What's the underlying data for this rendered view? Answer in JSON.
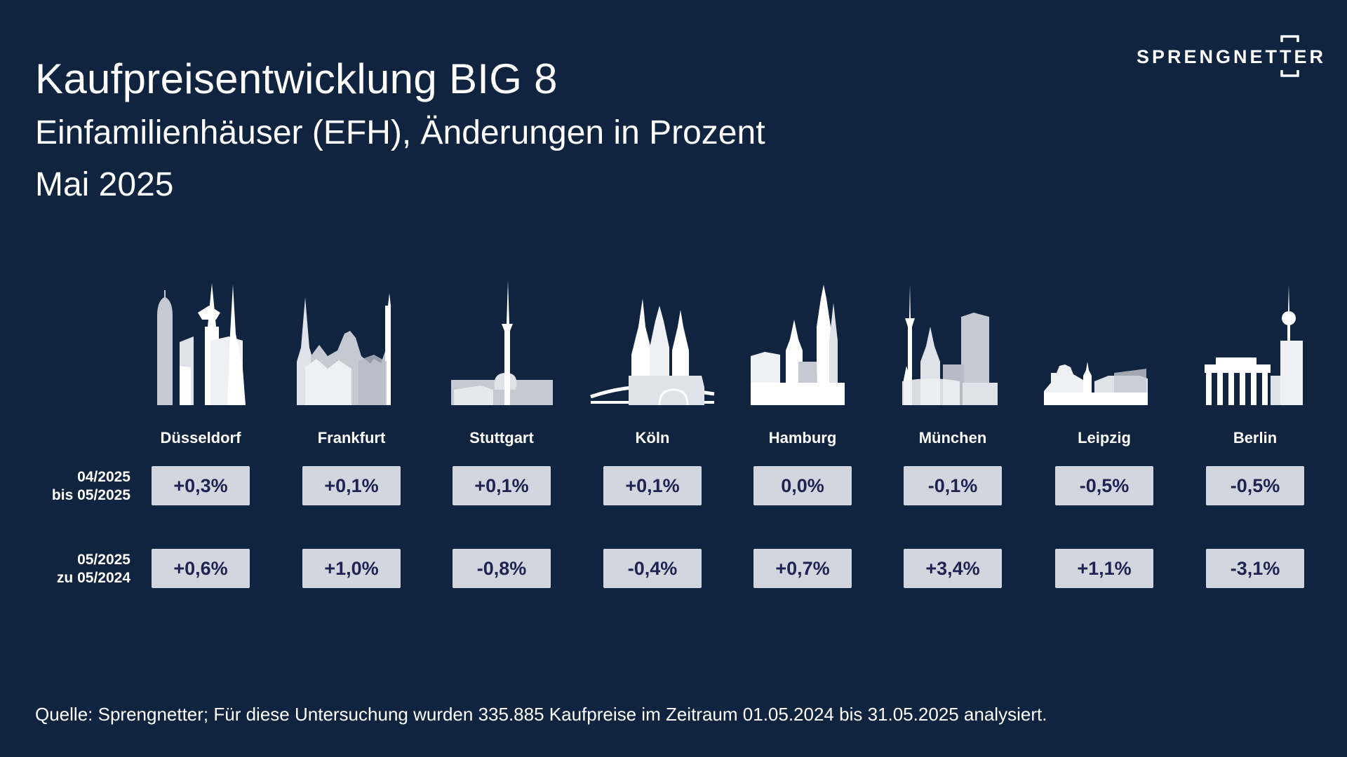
{
  "header": {
    "title": "Kaufpreisentwicklung BIG 8",
    "subtitle": "Einfamilienhäuser (EFH), Änderungen in Prozent",
    "period": "Mai 2025"
  },
  "logo": {
    "text": "SPRENGNETTER"
  },
  "rows": {
    "monthly": {
      "line1": "04/2025",
      "line2": "bis 05/2025"
    },
    "yearly": {
      "line1": "05/2025",
      "line2": "zu 05/2024"
    }
  },
  "chart_data": {
    "type": "table",
    "columns": [
      "Düsseldorf",
      "Frankfurt",
      "Stuttgart",
      "Köln",
      "Hamburg",
      "München",
      "Leipzig",
      "Berlin"
    ],
    "rows": [
      {
        "label": "04/2025 bis 05/2025",
        "display": [
          "+0,3%",
          "+0,1%",
          "+0,1%",
          "+0,1%",
          "0,0%",
          "-0,1%",
          "-0,5%",
          "-0,5%"
        ],
        "values": [
          0.3,
          0.1,
          0.1,
          0.1,
          0.0,
          -0.1,
          -0.5,
          -0.5
        ]
      },
      {
        "label": "05/2025 zu 05/2024",
        "display": [
          "+0,6%",
          "+1,0%",
          "-0,8%",
          "-0,4%",
          "+0,7%",
          "+3,4%",
          "+1,1%",
          "-3,1%"
        ],
        "values": [
          0.6,
          1.0,
          -0.8,
          -0.4,
          0.7,
          3.4,
          1.1,
          -3.1
        ]
      }
    ]
  },
  "footer": {
    "source": "Quelle: Sprengnetter; Für diese Untersuchung wurden 335.885 Kaufpreise im Zeitraum 01.05.2024 bis 31.05.2025 analysiert."
  },
  "colors": {
    "background": "#10233f",
    "box": "#d2d6de",
    "box_text": "#1e2352",
    "skyline_light": "#ffffff",
    "skyline_mid": "#c5c9d1"
  },
  "icons": {
    "cities": [
      "duesseldorf-skyline-icon",
      "frankfurt-skyline-icon",
      "stuttgart-skyline-icon",
      "koeln-skyline-icon",
      "hamburg-skyline-icon",
      "muenchen-skyline-icon",
      "leipzig-skyline-icon",
      "berlin-skyline-icon"
    ]
  }
}
